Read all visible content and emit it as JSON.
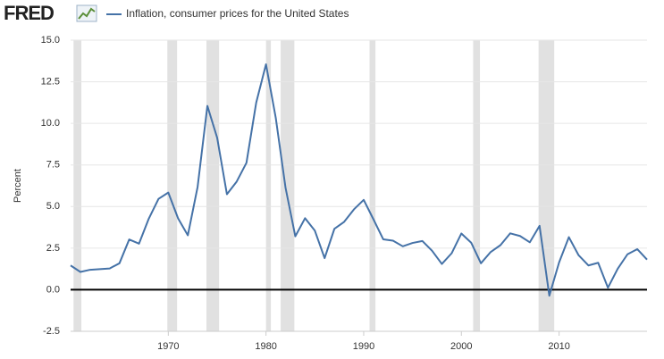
{
  "chart_data": {
    "type": "line",
    "logo": "FRED",
    "legend": "Inflation, consumer prices for the United States",
    "y_label": "Percent",
    "x": [
      1960,
      1961,
      1962,
      1963,
      1964,
      1965,
      1966,
      1967,
      1968,
      1969,
      1970,
      1971,
      1972,
      1973,
      1974,
      1975,
      1976,
      1977,
      1978,
      1979,
      1980,
      1981,
      1982,
      1983,
      1984,
      1985,
      1986,
      1987,
      1988,
      1989,
      1990,
      1991,
      1992,
      1993,
      1994,
      1995,
      1996,
      1997,
      1998,
      1999,
      2000,
      2001,
      2002,
      2003,
      2004,
      2005,
      2006,
      2007,
      2008,
      2009,
      2010,
      2011,
      2012,
      2013,
      2014,
      2015,
      2016,
      2017,
      2018,
      2019
    ],
    "series": [
      {
        "name": "Inflation, consumer prices for the United States",
        "color": "#4572a7",
        "values": [
          1.46,
          1.07,
          1.2,
          1.24,
          1.28,
          1.59,
          3.02,
          2.77,
          4.27,
          5.46,
          5.84,
          4.29,
          3.27,
          6.18,
          11.05,
          9.14,
          5.74,
          6.5,
          7.63,
          11.25,
          13.55,
          10.33,
          6.13,
          3.21,
          4.3,
          3.55,
          1.9,
          3.66,
          4.08,
          4.83,
          5.4,
          4.23,
          3.03,
          2.95,
          2.61,
          2.81,
          2.93,
          2.34,
          1.55,
          2.19,
          3.38,
          2.83,
          1.59,
          2.27,
          2.68,
          3.39,
          3.23,
          2.85,
          3.84,
          -0.36,
          1.64,
          3.16,
          2.07,
          1.46,
          1.62,
          0.12,
          1.26,
          2.13,
          2.44,
          1.81
        ]
      }
    ],
    "recessions": [
      [
        1960.3,
        1961.1
      ],
      [
        1969.9,
        1970.9
      ],
      [
        1973.9,
        1975.2
      ],
      [
        1980.0,
        1980.5
      ],
      [
        1981.5,
        1982.9
      ],
      [
        1990.6,
        1991.2
      ],
      [
        2001.2,
        2001.9
      ],
      [
        2007.9,
        2009.5
      ]
    ],
    "recession_color": "#e1e1e1",
    "xlim": [
      1960,
      2019
    ],
    "xticks": [
      1970,
      1980,
      1990,
      2000,
      2010
    ],
    "ylim": [
      -2.5,
      15
    ],
    "yticks": [
      -2.5,
      {
        "value": 0,
        "label": "0.0"
      },
      2.5,
      {
        "value": 5,
        "label": "5.0"
      },
      7.5,
      {
        "value": 10,
        "label": "10.0"
      },
      12.5,
      {
        "value": 15,
        "label": "15.0"
      }
    ],
    "grid": true
  }
}
